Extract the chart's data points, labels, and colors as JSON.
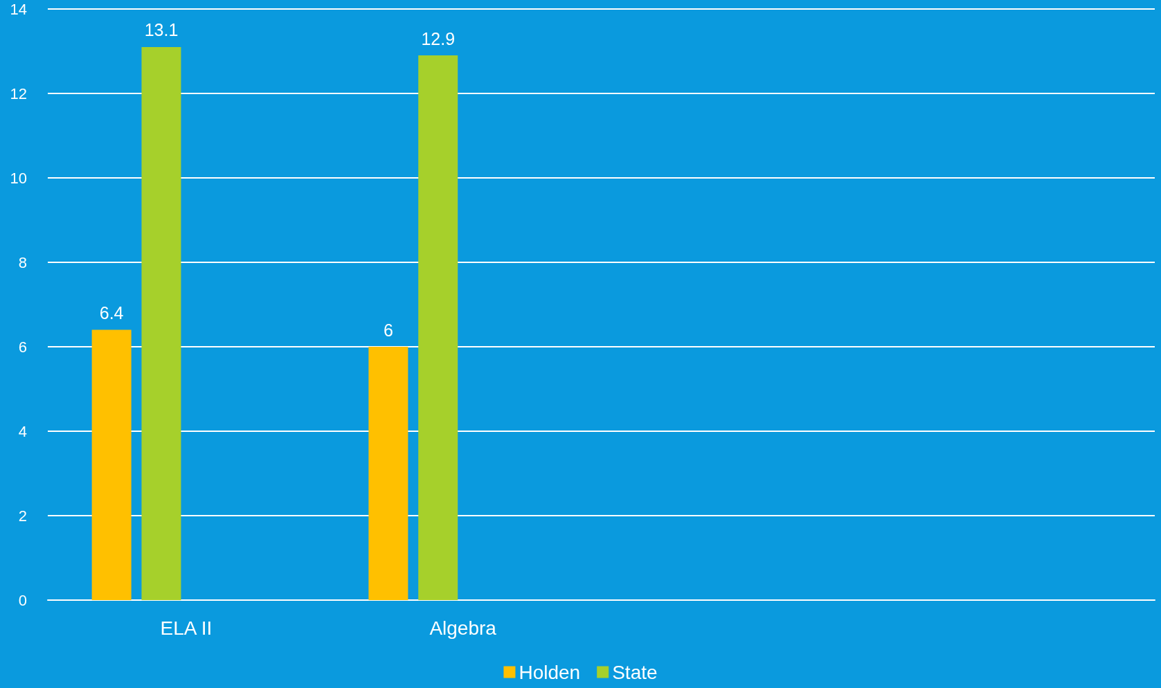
{
  "chart_data": {
    "type": "bar",
    "categories": [
      "ELA II",
      "Algebra",
      null,
      null
    ],
    "series": [
      {
        "name": "Holden",
        "color": "#ffc000",
        "values": [
          6.4,
          6,
          null,
          null
        ]
      },
      {
        "name": "State",
        "color": "#a6d02b",
        "values": [
          13.1,
          12.9,
          null,
          null
        ]
      }
    ],
    "ylim": [
      0,
      14
    ],
    "yticks": [
      0,
      2,
      4,
      6,
      8,
      10,
      12,
      14
    ],
    "grid": "y",
    "legend": "bottom",
    "data_labels": true
  }
}
